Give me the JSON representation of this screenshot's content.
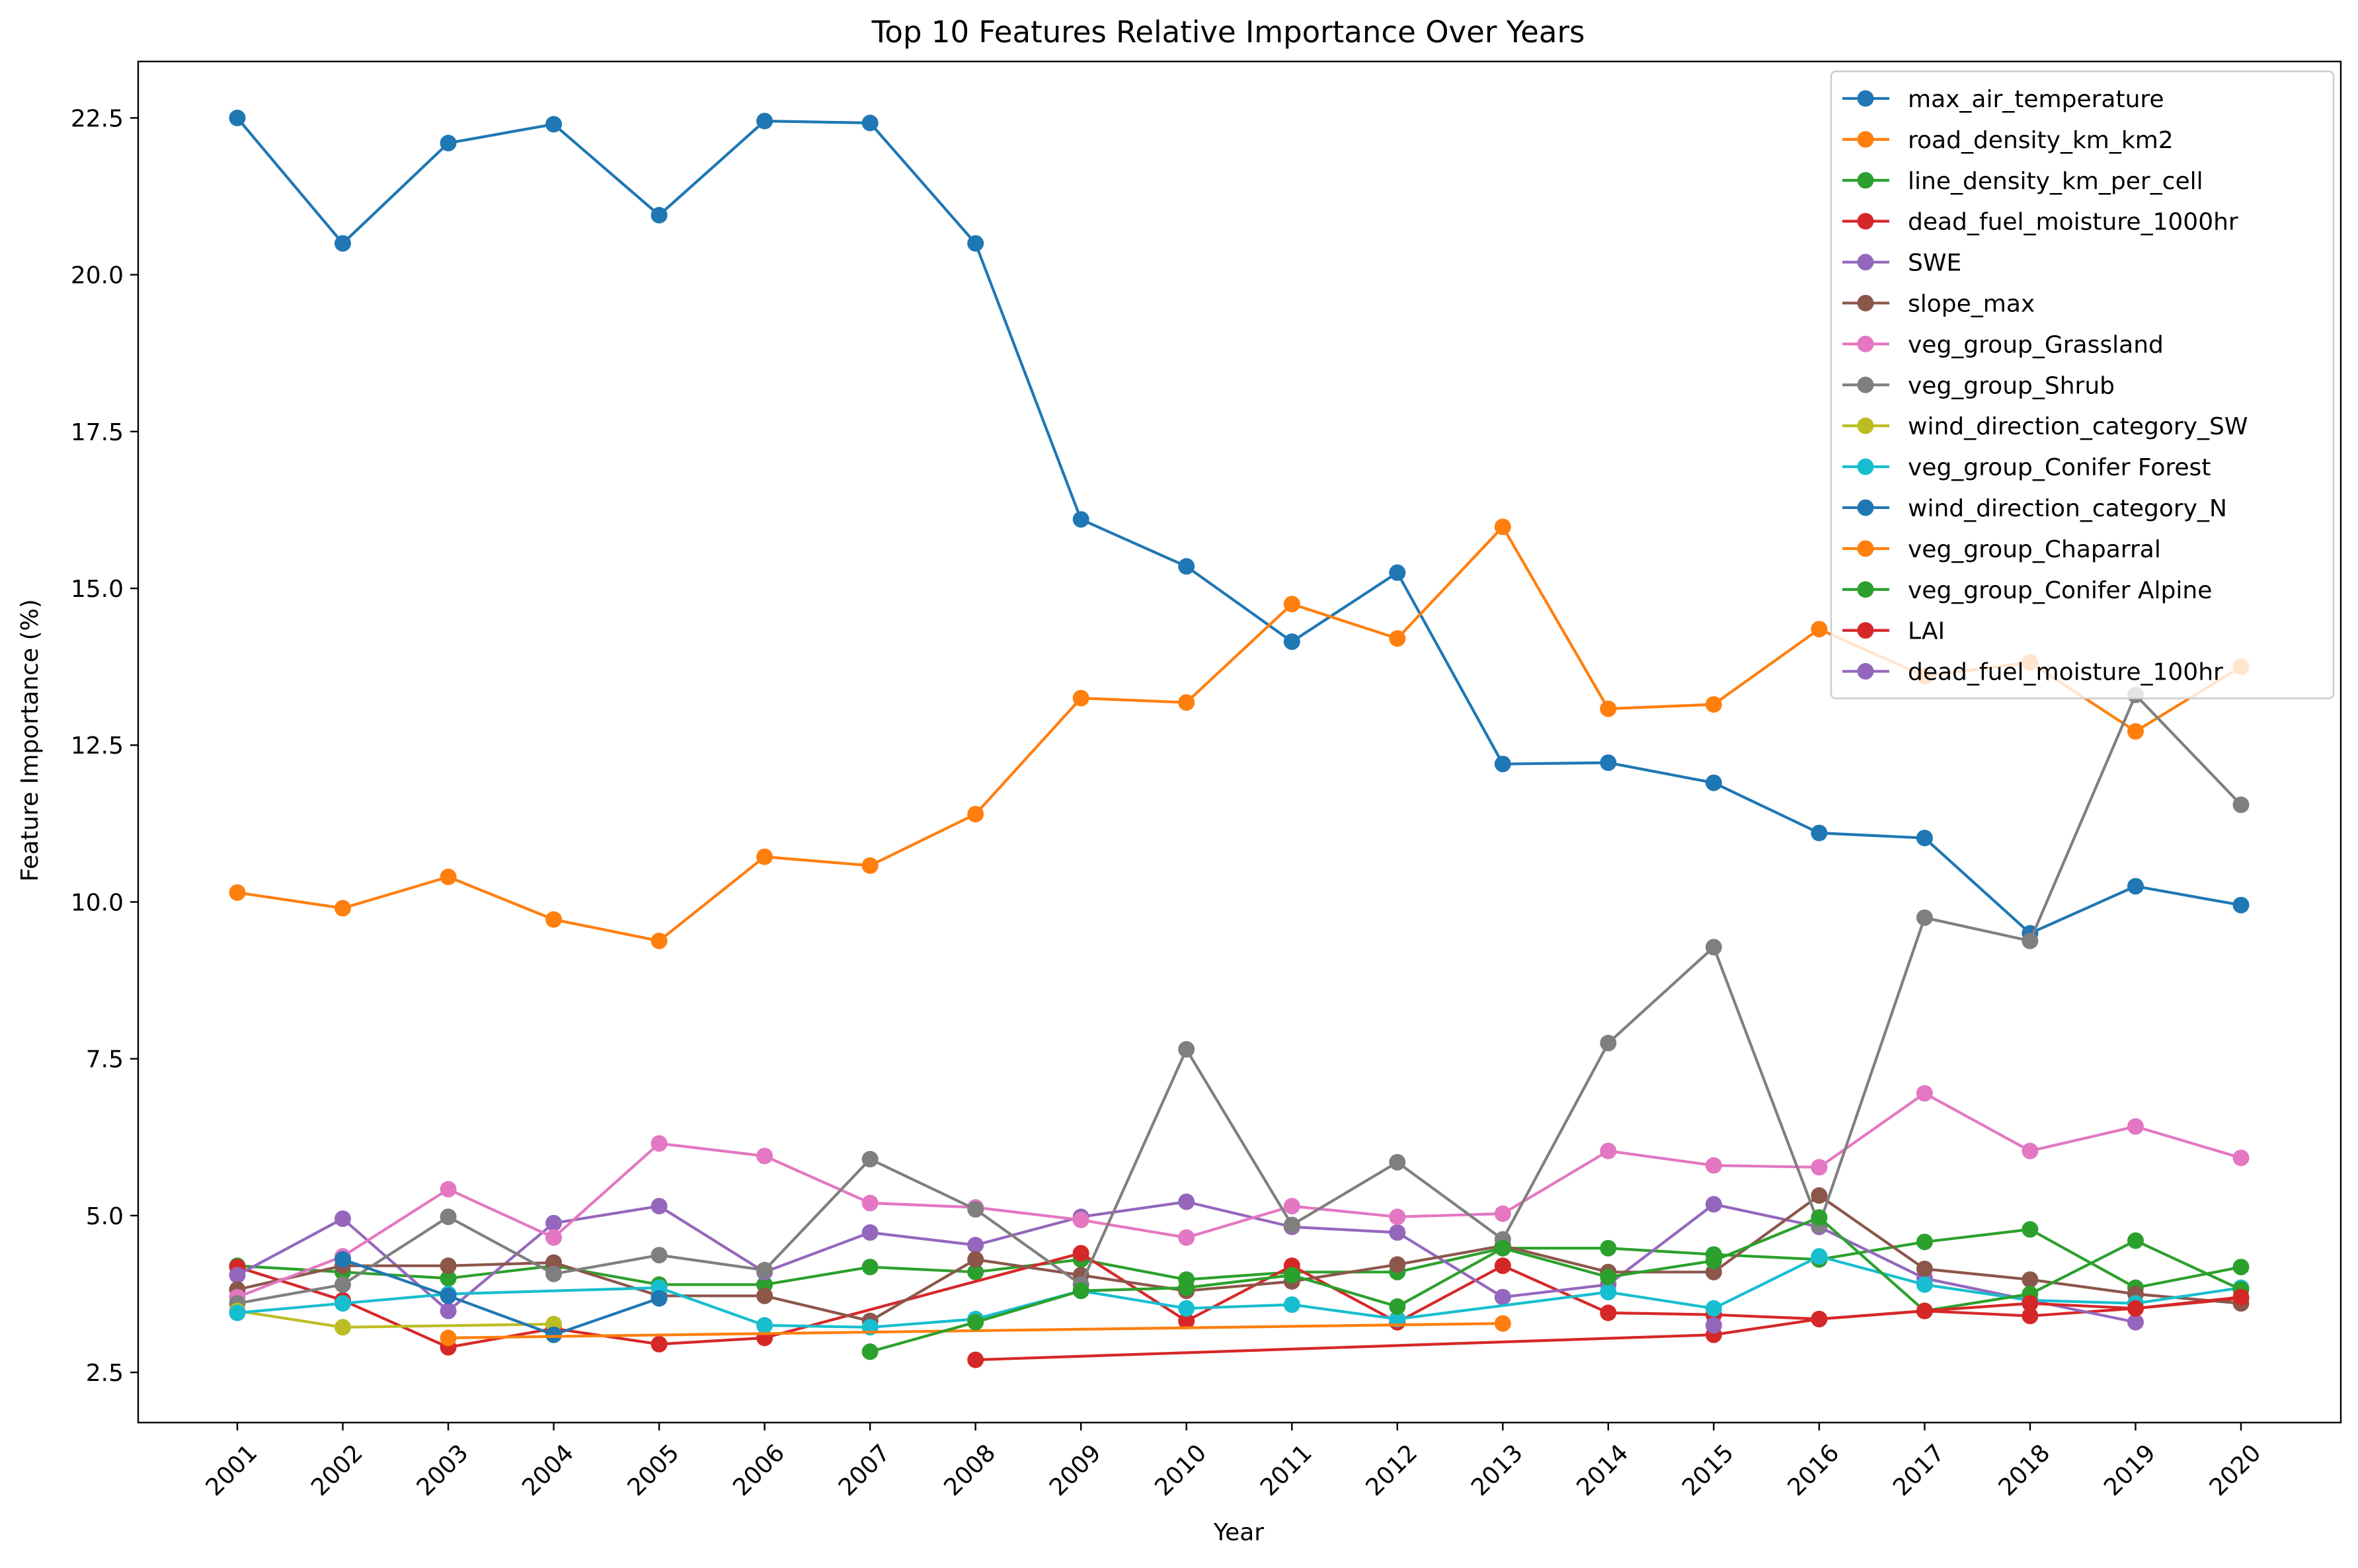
{
  "chart_data": {
    "type": "line",
    "title": "Top 10 Features Relative Importance Over Years",
    "xlabel": "Year",
    "ylabel": "Feature Importance (%)",
    "x": [
      "2001",
      "2002",
      "2003",
      "2004",
      "2005",
      "2006",
      "2007",
      "2008",
      "2009",
      "2010",
      "2011",
      "2012",
      "2013",
      "2014",
      "2015",
      "2016",
      "2017",
      "2018",
      "2019",
      "2020"
    ],
    "yticks": [
      "2.5",
      "5.0",
      "7.5",
      "10.0",
      "12.5",
      "15.0",
      "17.5",
      "20.0",
      "22.5"
    ],
    "ytick_values": [
      2.5,
      5.0,
      7.5,
      10.0,
      12.5,
      15.0,
      17.5,
      20.0,
      22.5
    ],
    "ylim": [
      1.7,
      23.4
    ],
    "grid": false,
    "legend_position": "upper right",
    "series": [
      {
        "name": "max_air_temperature",
        "color": "#1f77b4",
        "values": [
          22.5,
          20.5,
          22.1,
          22.4,
          20.95,
          22.45,
          22.42,
          20.5,
          16.1,
          15.35,
          14.15,
          15.25,
          12.2,
          12.22,
          11.9,
          11.1,
          11.02,
          9.5,
          10.25,
          9.95
        ]
      },
      {
        "name": "road_density_km_km2",
        "color": "#ff7f0e",
        "values": [
          10.15,
          9.9,
          10.4,
          9.72,
          9.38,
          10.72,
          10.58,
          11.4,
          13.25,
          13.18,
          14.75,
          14.2,
          15.98,
          13.08,
          13.15,
          14.35,
          13.6,
          13.82,
          12.72,
          13.75
        ]
      },
      {
        "name": "line_density_km_per_cell",
        "color": "#2ca02c",
        "values": [
          4.2,
          4.1,
          4.0,
          4.2,
          3.9,
          3.9,
          4.18,
          4.1,
          4.3,
          3.98,
          4.1,
          4.1,
          4.48,
          4.48,
          4.38,
          4.3,
          4.58,
          4.78,
          3.85,
          4.18
        ]
      },
      {
        "name": "dead_fuel_moisture_1000hr",
        "color": "#d62728",
        "values": [
          4.18,
          3.65,
          2.9,
          3.2,
          2.95,
          3.05,
          null,
          null,
          4.4,
          3.32,
          4.2,
          3.3,
          4.2,
          3.45,
          3.42,
          3.35,
          3.48,
          3.4,
          3.52,
          3.68
        ]
      },
      {
        "name": "SWE",
        "color": "#9467bd",
        "values": [
          4.05,
          4.95,
          3.48,
          4.88,
          5.15,
          4.1,
          4.73,
          4.53,
          4.98,
          5.22,
          4.82,
          4.73,
          3.7,
          3.9,
          5.18,
          4.82,
          4.0,
          3.65,
          3.3,
          null
        ]
      },
      {
        "name": "slope_max",
        "color": "#8c564b",
        "values": [
          3.82,
          4.2,
          4.2,
          4.25,
          3.72,
          3.72,
          3.32,
          4.3,
          4.05,
          3.8,
          3.95,
          4.22,
          4.52,
          4.1,
          4.1,
          5.32,
          4.15,
          3.98,
          3.75,
          3.6
        ]
      },
      {
        "name": "veg_group_Grassland",
        "color": "#e377c2",
        "values": [
          3.7,
          4.35,
          5.42,
          4.65,
          6.15,
          5.95,
          5.2,
          5.13,
          4.93,
          4.65,
          5.15,
          4.98,
          5.03,
          6.03,
          5.8,
          5.77,
          6.95,
          6.03,
          6.42,
          5.92
        ]
      },
      {
        "name": "veg_group_Shrub",
        "color": "#7f7f7f",
        "values": [
          3.6,
          3.9,
          4.98,
          4.07,
          4.37,
          4.13,
          5.9,
          5.1,
          3.9,
          7.65,
          4.85,
          5.85,
          4.62,
          7.75,
          9.28,
          4.85,
          9.75,
          9.38,
          13.3,
          11.55
        ]
      },
      {
        "name": "wind_direction_category_SW",
        "color": "#bcbd22",
        "values": [
          3.48,
          3.22,
          null,
          3.27,
          null,
          null,
          null,
          null,
          null,
          null,
          null,
          null,
          null,
          null,
          null,
          null,
          null,
          null,
          null,
          null
        ]
      },
      {
        "name": "veg_group_Conifer Forest",
        "color": "#17becf",
        "values": [
          3.45,
          3.6,
          3.75,
          null,
          3.85,
          3.25,
          3.22,
          3.35,
          3.8,
          3.52,
          3.58,
          3.35,
          null,
          3.78,
          3.52,
          4.35,
          3.9,
          3.65,
          3.6,
          3.85
        ]
      },
      {
        "name": "wind_direction_category_N",
        "color": "#1f77b4",
        "values": [
          null,
          4.3,
          3.72,
          3.1,
          3.68,
          null,
          null,
          null,
          null,
          null,
          null,
          null,
          null,
          null,
          null,
          null,
          null,
          null,
          null,
          null
        ]
      },
      {
        "name": "veg_group_Chaparral",
        "color": "#ff7f0e",
        "values": [
          null,
          null,
          3.05,
          null,
          null,
          null,
          null,
          null,
          null,
          null,
          null,
          null,
          3.28,
          null,
          null,
          null,
          null,
          null,
          null,
          null
        ]
      },
      {
        "name": "veg_group_Conifer Alpine",
        "color": "#2ca02c",
        "values": [
          null,
          null,
          null,
          null,
          null,
          null,
          2.83,
          3.3,
          3.8,
          3.85,
          4.05,
          3.55,
          4.48,
          4.02,
          4.28,
          4.97,
          3.48,
          3.75,
          4.6,
          3.82
        ]
      },
      {
        "name": "LAI",
        "color": "#d62728",
        "values": [
          null,
          null,
          null,
          null,
          null,
          null,
          null,
          2.7,
          null,
          null,
          null,
          null,
          null,
          null,
          3.1,
          3.35,
          3.48,
          3.6,
          3.52,
          3.7
        ]
      },
      {
        "name": "dead_fuel_moisture_100hr",
        "color": "#9467bd",
        "values": [
          null,
          null,
          null,
          null,
          null,
          null,
          null,
          null,
          null,
          null,
          null,
          null,
          null,
          null,
          3.25,
          null,
          null,
          null,
          null,
          null
        ]
      }
    ]
  }
}
